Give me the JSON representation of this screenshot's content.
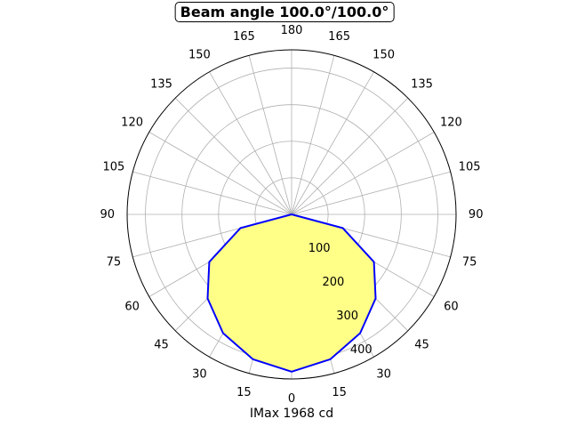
{
  "chart_data": {
    "type": "polar-area",
    "title": "Beam angle 100.0°/100.0°",
    "xlabel": "IMax 1968 cd",
    "angle_tick_labels": [
      "0",
      "15",
      "30",
      "45",
      "60",
      "75",
      "90",
      "105",
      "120",
      "135",
      "150",
      "165",
      "180",
      "165",
      "150",
      "135",
      "120",
      "105",
      "90",
      "75",
      "60",
      "45",
      "30",
      "15"
    ],
    "radial_tick_labels": [
      "100",
      "200",
      "300",
      "400"
    ],
    "rlim": [
      0,
      450
    ],
    "grid": true,
    "series": [
      {
        "fill_color": "#ffff88",
        "line_color": "#0000ff",
        "angles_deg": [
          0,
          15,
          30,
          45,
          60,
          75,
          90,
          105,
          120,
          135,
          150,
          165,
          180
        ],
        "values": [
          430,
          410,
          375,
          325,
          260,
          145,
          0,
          0,
          0,
          0,
          0,
          0,
          0
        ],
        "mirrored": true
      }
    ]
  }
}
